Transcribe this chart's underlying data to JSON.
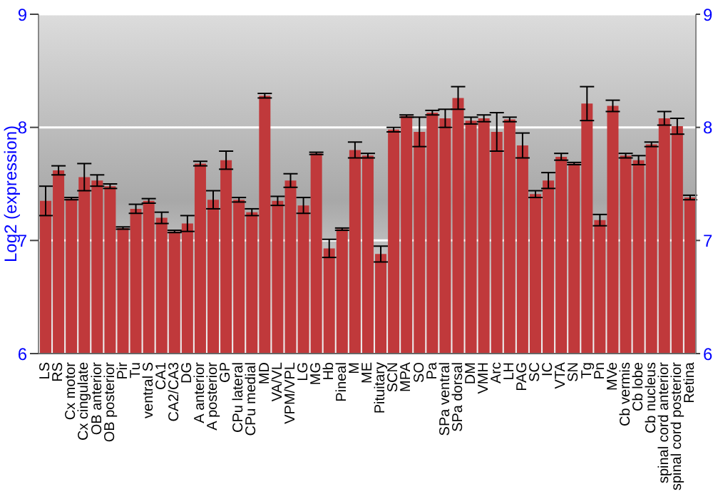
{
  "chart_data": {
    "type": "bar",
    "ylabel": "Log2 (expression)",
    "categories": [
      "LS",
      "RS",
      "Cx motor",
      "Cx cingulate",
      "OB anterior",
      "OB posterior",
      "Pir",
      "Tu",
      "ventral S",
      "CA1",
      "CA2/CA3",
      "DG",
      "A anterior",
      "A posterior",
      "GP",
      "CPu lateral",
      "CPu medial",
      "MD",
      "VA/VL",
      "VPM/VPL",
      "LG",
      "MG",
      "Hb",
      "Pineal",
      "M",
      "ME",
      "Pituitary",
      "SCN",
      "MPA",
      "SO",
      "Pa",
      "SPa ventral",
      "SPa dorsal",
      "DM",
      "VMH",
      "Arc",
      "LH",
      "PAG",
      "SC",
      "IC",
      "VTA",
      "SN",
      "Tg",
      "Pn",
      "MVe",
      "Cb vermis",
      "Cb lobe",
      "Cb nucleus",
      "spinal cord anterior",
      "spinal cord posterior",
      "Retina"
    ],
    "values": [
      7.35,
      7.62,
      7.37,
      7.56,
      7.53,
      7.48,
      7.11,
      7.28,
      7.35,
      7.2,
      7.08,
      7.15,
      7.68,
      7.36,
      7.71,
      7.36,
      7.25,
      8.28,
      7.35,
      7.53,
      7.31,
      7.77,
      6.93,
      7.1,
      7.8,
      7.75,
      6.88,
      7.98,
      8.1,
      7.96,
      8.13,
      8.08,
      8.26,
      8.06,
      8.08,
      7.96,
      8.07,
      7.84,
      7.41,
      7.53,
      7.74,
      7.68,
      8.21,
      7.18,
      8.19,
      7.75,
      7.71,
      7.85,
      8.08,
      8.01,
      7.38
    ],
    "errors": [
      0.13,
      0.04,
      0.01,
      0.12,
      0.05,
      0.02,
      0.01,
      0.04,
      0.02,
      0.05,
      0.01,
      0.07,
      0.02,
      0.08,
      0.08,
      0.02,
      0.03,
      0.02,
      0.04,
      0.06,
      0.07,
      0.01,
      0.08,
      0.01,
      0.07,
      0.02,
      0.07,
      0.02,
      0.01,
      0.13,
      0.02,
      0.08,
      0.1,
      0.03,
      0.03,
      0.17,
      0.02,
      0.11,
      0.03,
      0.07,
      0.03,
      0.01,
      0.15,
      0.05,
      0.05,
      0.02,
      0.04,
      0.02,
      0.06,
      0.07,
      0.02
    ],
    "color": "#c0393b",
    "ylim": [
      6,
      9
    ],
    "yticks": [
      6,
      7,
      8,
      9
    ],
    "y2lim": [
      6,
      9
    ],
    "y2ticks": [
      6,
      7,
      8,
      9
    ],
    "grid": "y"
  }
}
